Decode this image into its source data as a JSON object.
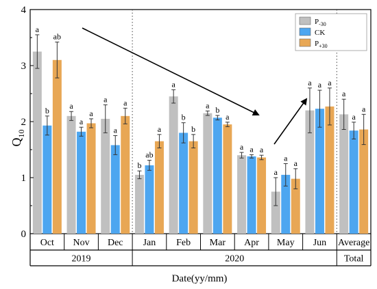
{
  "chart_data": {
    "type": "bar",
    "ylabel_main": "Q",
    "ylabel_sub": "10",
    "xlabel": "Date(yy/mm)",
    "ylim": [
      0,
      4
    ],
    "yticks": [
      "0",
      "1",
      "2",
      "3",
      "4"
    ],
    "categories": [
      "Oct",
      "Nov",
      "Dec",
      "Jan",
      "Feb",
      "Mar",
      "Apr",
      "May",
      "Jun",
      "Average"
    ],
    "groups": [
      {
        "label": "2019",
        "start": 0,
        "end": 2
      },
      {
        "label": "2020",
        "start": 3,
        "end": 8
      },
      {
        "label": "Total",
        "start": 9,
        "end": 9
      }
    ],
    "legend_position": "top-right",
    "series": [
      {
        "name": "P",
        "sub": "-30",
        "color": "#c0c0c0",
        "values": [
          3.25,
          2.1,
          2.05,
          1.05,
          2.45,
          2.15,
          1.4,
          0.75,
          2.2,
          2.13
        ],
        "errors": [
          0.3,
          0.08,
          0.25,
          0.07,
          0.12,
          0.04,
          0.05,
          0.25,
          0.4,
          0.27
        ],
        "letters": [
          "a",
          "a",
          "a",
          "b",
          "a",
          "a",
          "a",
          "a",
          "a",
          "a"
        ]
      },
      {
        "name": "CK",
        "sub": "",
        "color": "#4da6f0",
        "values": [
          1.93,
          1.82,
          1.58,
          1.22,
          1.8,
          2.07,
          1.38,
          1.05,
          2.23,
          1.84
        ],
        "errors": [
          0.17,
          0.08,
          0.17,
          0.09,
          0.18,
          0.04,
          0.03,
          0.2,
          0.33,
          0.15
        ],
        "letters": [
          "b",
          "a",
          "a",
          "ab",
          "b",
          "b",
          "a",
          "a",
          "a",
          "a"
        ]
      },
      {
        "name": "P",
        "sub": "+30",
        "color": "#e8a755",
        "values": [
          3.1,
          1.97,
          2.1,
          1.65,
          1.65,
          1.95,
          1.36,
          0.98,
          2.27,
          1.86
        ],
        "errors": [
          0.32,
          0.08,
          0.14,
          0.12,
          0.12,
          0.04,
          0.04,
          0.18,
          0.33,
          0.27
        ],
        "letters": [
          "ab",
          "a",
          "a",
          "a",
          "b",
          "a",
          "a",
          "a",
          "a",
          "a"
        ]
      }
    ]
  }
}
